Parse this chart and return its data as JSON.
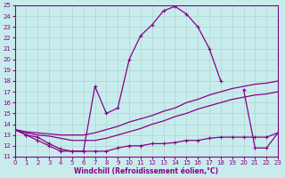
{
  "xlabel": "Windchill (Refroidissement éolien,°C)",
  "bg_color": "#c8ecec",
  "grid_color": "#b0d8d8",
  "line_color": "#880088",
  "xlim": [
    0,
    23
  ],
  "ylim": [
    11,
    25
  ],
  "xticks": [
    0,
    1,
    2,
    3,
    4,
    5,
    6,
    7,
    8,
    9,
    10,
    11,
    12,
    13,
    14,
    15,
    16,
    17,
    18,
    19,
    20,
    21,
    22,
    23
  ],
  "yticks": [
    11,
    12,
    13,
    14,
    15,
    16,
    17,
    18,
    19,
    20,
    21,
    22,
    23,
    24,
    25
  ],
  "line1_x": [
    0,
    1,
    2,
    3,
    4,
    5,
    6,
    7,
    8,
    9,
    10,
    11,
    12,
    13,
    14,
    15,
    16,
    17,
    18,
    20,
    21,
    22,
    23
  ],
  "line1_y": [
    13.5,
    13.0,
    12.8,
    12.2,
    11.7,
    11.5,
    11.5,
    17.5,
    15.0,
    15.5,
    20.0,
    22.2,
    23.2,
    24.5,
    24.9,
    24.2,
    23.0,
    21.0,
    18.0,
    17.2,
    11.8,
    11.8,
    13.2
  ],
  "line2_x": [
    0,
    1,
    2,
    3,
    4,
    5,
    6,
    7,
    8,
    9,
    10,
    11,
    12,
    13,
    14,
    15,
    16,
    17,
    18,
    19,
    20,
    21,
    22,
    23
  ],
  "line2_y": [
    13.5,
    13.0,
    12.5,
    12.0,
    11.5,
    11.5,
    11.5,
    11.5,
    11.5,
    11.8,
    12.0,
    12.0,
    12.2,
    12.2,
    12.3,
    12.5,
    12.5,
    12.7,
    12.8,
    12.8,
    12.8,
    12.8,
    12.8,
    13.2
  ],
  "line3_x": [
    0,
    1,
    2,
    3,
    4,
    5,
    6,
    7,
    8,
    9,
    10,
    11,
    12,
    13,
    14,
    15,
    16,
    17,
    18,
    19,
    20,
    21,
    22,
    23
  ],
  "line3_y": [
    13.5,
    13.3,
    13.2,
    13.1,
    13.0,
    13.0,
    13.0,
    13.2,
    13.5,
    13.8,
    14.2,
    14.5,
    14.8,
    15.2,
    15.5,
    16.0,
    16.3,
    16.7,
    17.0,
    17.3,
    17.5,
    17.7,
    17.8,
    18.0
  ],
  "line4_x": [
    0,
    1,
    2,
    3,
    4,
    5,
    6,
    7,
    8,
    9,
    10,
    11,
    12,
    13,
    14,
    15,
    16,
    17,
    18,
    19,
    20,
    21,
    22,
    23
  ],
  "line4_y": [
    13.5,
    13.2,
    13.0,
    12.9,
    12.7,
    12.5,
    12.5,
    12.5,
    12.7,
    13.0,
    13.3,
    13.6,
    14.0,
    14.3,
    14.7,
    15.0,
    15.4,
    15.7,
    16.0,
    16.3,
    16.5,
    16.7,
    16.8,
    17.0
  ]
}
